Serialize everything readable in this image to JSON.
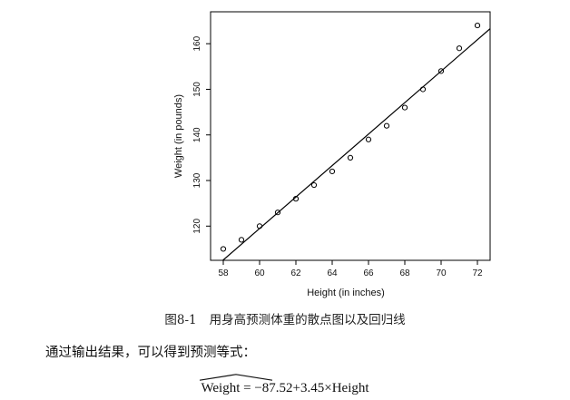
{
  "figure": {
    "caption_number": "图8-1",
    "caption_text": "用身高预测体重的散点图以及回归线"
  },
  "chart_data": {
    "type": "scatter",
    "xlabel": "Height (in inches)",
    "ylabel": "Weight (in pounds)",
    "xlim": [
      57.3,
      72.7
    ],
    "ylim": [
      112.5,
      167
    ],
    "x_ticks": [
      58,
      60,
      62,
      64,
      66,
      68,
      70,
      72
    ],
    "y_ticks": [
      120,
      130,
      140,
      150,
      160
    ],
    "points": [
      {
        "x": 58,
        "y": 115
      },
      {
        "x": 59,
        "y": 117
      },
      {
        "x": 60,
        "y": 120
      },
      {
        "x": 61,
        "y": 123
      },
      {
        "x": 62,
        "y": 126
      },
      {
        "x": 63,
        "y": 129
      },
      {
        "x": 64,
        "y": 132
      },
      {
        "x": 65,
        "y": 135
      },
      {
        "x": 66,
        "y": 139
      },
      {
        "x": 67,
        "y": 142
      },
      {
        "x": 68,
        "y": 146
      },
      {
        "x": 69,
        "y": 150
      },
      {
        "x": 70,
        "y": 154
      },
      {
        "x": 71,
        "y": 159
      },
      {
        "x": 72,
        "y": 164
      }
    ],
    "regression_line": {
      "intercept": -87.52,
      "slope": 3.45
    },
    "grid": false,
    "legend": "none"
  },
  "text": {
    "intro": "通过输出结果，可以得到预测等式：",
    "equation_lhs": "Weight",
    "equation_rhs": " = −87.52+3.45×Height"
  }
}
